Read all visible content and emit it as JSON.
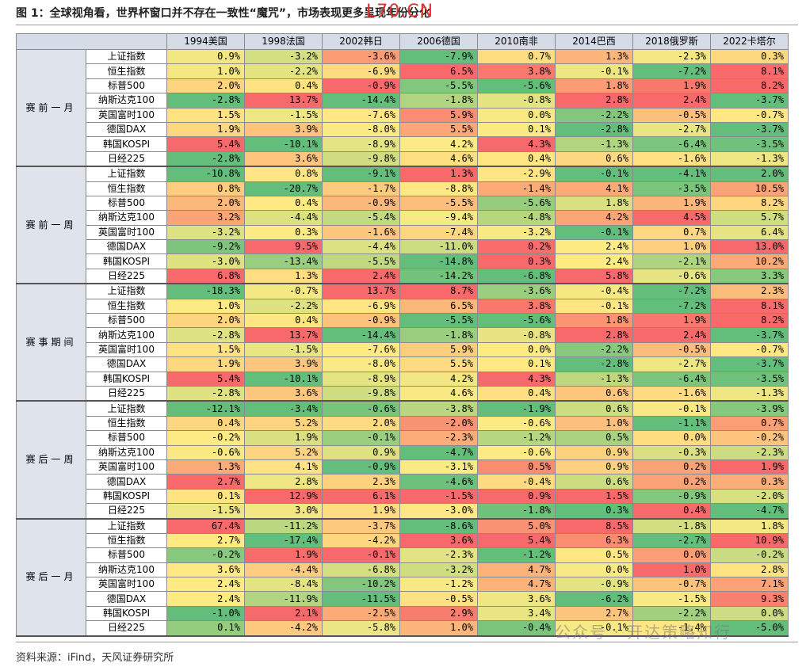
{
  "title": "图 1：全球视角看，世界杯窗口并不存在一致性“魔咒”，市场表现更多呈现年份分化",
  "stamp": "L70.CN",
  "columns": [
    "1994美国",
    "1998法国",
    "2002韩日",
    "2006德国",
    "2010南非",
    "2014巴西",
    "2018俄罗斯",
    "2022卡塔尔"
  ],
  "groups": [
    {
      "label": "赛前一月",
      "rows": [
        {
          "name": "上证指数",
          "values": [
            "0.9%",
            "-3.2%",
            "-3.6%",
            "-7.9%",
            "0.7%",
            "1.3%",
            "-2.3%",
            "0.3%"
          ]
        },
        {
          "name": "恒生指数",
          "values": [
            "1.0%",
            "-2.2%",
            "-6.9%",
            "6.5%",
            "3.8%",
            "-0.1%",
            "-7.2%",
            "8.1%"
          ]
        },
        {
          "name": "标普500",
          "values": [
            "2.0%",
            "0.4%",
            "-0.9%",
            "-5.5%",
            "-5.6%",
            "1.8%",
            "1.9%",
            "8.2%"
          ]
        },
        {
          "name": "纳斯达克100",
          "values": [
            "-2.8%",
            "13.7%",
            "-14.4%",
            "-1.8%",
            "-0.8%",
            "2.8%",
            "2.4%",
            "-3.7%"
          ]
        },
        {
          "name": "英国富时100",
          "values": [
            "1.5%",
            "-1.5%",
            "-7.6%",
            "5.9%",
            "0.0%",
            "-2.2%",
            "-0.5%",
            "-0.7%"
          ]
        },
        {
          "name": "德国DAX",
          "values": [
            "1.9%",
            "3.9%",
            "-8.0%",
            "5.5%",
            "0.1%",
            "-2.8%",
            "-2.7%",
            "-3.7%"
          ]
        },
        {
          "name": "韩国KOSPI",
          "values": [
            "5.4%",
            "-10.1%",
            "-8.9%",
            "4.2%",
            "4.3%",
            "-1.3%",
            "-6.4%",
            "-3.5%"
          ]
        },
        {
          "name": "日经225",
          "values": [
            "-2.8%",
            "3.6%",
            "-9.8%",
            "4.6%",
            "0.4%",
            "0.6%",
            "-1.6%",
            "-1.3%"
          ]
        }
      ]
    },
    {
      "label": "赛前一周",
      "rows": [
        {
          "name": "上证指数",
          "values": [
            "-10.8%",
            "0.8%",
            "-9.1%",
            "1.3%",
            "-2.9%",
            "-0.1%",
            "-4.1%",
            "2.0%"
          ]
        },
        {
          "name": "恒生指数",
          "values": [
            "0.8%",
            "-20.7%",
            "-1.7%",
            "-8.8%",
            "-1.4%",
            "4.1%",
            "-3.5%",
            "10.5%"
          ]
        },
        {
          "name": "标普500",
          "values": [
            "2.0%",
            "0.4%",
            "-0.9%",
            "-5.5%",
            "-5.6%",
            "1.8%",
            "1.9%",
            "8.2%"
          ]
        },
        {
          "name": "纳斯达克100",
          "values": [
            "3.2%",
            "-4.4%",
            "-5.4%",
            "-9.4%",
            "-4.8%",
            "4.2%",
            "4.5%",
            "5.7%"
          ]
        },
        {
          "name": "英国富时100",
          "values": [
            "-3.2%",
            "0.3%",
            "-1.6%",
            "-7.4%",
            "-3.2%",
            "-0.1%",
            "0.7%",
            "6.4%"
          ]
        },
        {
          "name": "德国DAX",
          "values": [
            "-9.2%",
            "9.5%",
            "-4.4%",
            "-11.0%",
            "0.2%",
            "2.4%",
            "1.0%",
            "13.0%"
          ]
        },
        {
          "name": "韩国KOSPI",
          "values": [
            "-3.0%",
            "-13.4%",
            "-5.5%",
            "-14.8%",
            "0.3%",
            "2.4%",
            "-2.1%",
            "10.2%"
          ]
        },
        {
          "name": "日经225",
          "values": [
            "6.8%",
            "1.3%",
            "2.4%",
            "-14.2%",
            "-6.8%",
            "5.8%",
            "-0.6%",
            "3.3%"
          ]
        }
      ]
    },
    {
      "label": "赛事期间",
      "rows": [
        {
          "name": "上证指数",
          "values": [
            "-18.3%",
            "-0.7%",
            "13.7%",
            "8.7%",
            "-3.6%",
            "-0.4%",
            "-7.2%",
            "2.3%"
          ]
        },
        {
          "name": "恒生指数",
          "values": [
            "1.0%",
            "-2.2%",
            "-6.9%",
            "6.5%",
            "3.8%",
            "-0.1%",
            "-7.2%",
            "8.1%"
          ]
        },
        {
          "name": "标普500",
          "values": [
            "2.0%",
            "0.4%",
            "-0.9%",
            "-5.5%",
            "-5.6%",
            "1.8%",
            "1.9%",
            "8.2%"
          ]
        },
        {
          "name": "纳斯达克100",
          "values": [
            "-2.8%",
            "13.7%",
            "-14.4%",
            "-1.8%",
            "-0.8%",
            "2.8%",
            "2.4%",
            "-3.7%"
          ]
        },
        {
          "name": "英国富时100",
          "values": [
            "1.5%",
            "-1.5%",
            "-7.6%",
            "5.9%",
            "0.0%",
            "-2.2%",
            "-0.5%",
            "-0.7%"
          ]
        },
        {
          "name": "德国DAX",
          "values": [
            "1.9%",
            "3.9%",
            "-8.0%",
            "5.5%",
            "0.1%",
            "-2.8%",
            "-2.7%",
            "-3.7%"
          ]
        },
        {
          "name": "韩国KOSPI",
          "values": [
            "5.4%",
            "-10.1%",
            "-8.9%",
            "4.2%",
            "4.3%",
            "-1.3%",
            "-6.4%",
            "-3.5%"
          ]
        },
        {
          "name": "日经225",
          "values": [
            "-2.8%",
            "3.6%",
            "-9.8%",
            "4.6%",
            "0.4%",
            "0.6%",
            "-1.6%",
            "-1.3%"
          ]
        }
      ]
    },
    {
      "label": "赛后一周",
      "rows": [
        {
          "name": "上证指数",
          "values": [
            "-12.1%",
            "-3.4%",
            "-0.6%",
            "-3.8%",
            "-1.9%",
            "0.6%",
            "-0.1%",
            "-3.9%"
          ]
        },
        {
          "name": "恒生指数",
          "values": [
            "0.4%",
            "5.2%",
            "2.0%",
            "-2.0%",
            "-0.6%",
            "1.0%",
            "-1.1%",
            "0.7%"
          ]
        },
        {
          "name": "标普500",
          "values": [
            "-0.2%",
            "1.9%",
            "-0.1%",
            "-2.3%",
            "-1.2%",
            "0.5%",
            "0.0%",
            "-0.2%"
          ]
        },
        {
          "name": "纳斯达克100",
          "values": [
            "-0.6%",
            "5.2%",
            "0.9%",
            "-4.7%",
            "-0.6%",
            "0.9%",
            "-0.3%",
            "-2.3%"
          ]
        },
        {
          "name": "英国富时100",
          "values": [
            "1.3%",
            "4.1%",
            "-0.9%",
            "-3.1%",
            "0.5%",
            "0.9%",
            "0.2%",
            "1.9%"
          ]
        },
        {
          "name": "德国DAX",
          "values": [
            "2.7%",
            "2.8%",
            "2.3%",
            "-4.6%",
            "-0.4%",
            "0.6%",
            "0.2%",
            "0.3%"
          ]
        },
        {
          "name": "韩国KOSPI",
          "values": [
            "0.1%",
            "12.9%",
            "6.1%",
            "-1.5%",
            "0.9%",
            "1.5%",
            "-0.9%",
            "-2.0%"
          ]
        },
        {
          "name": "日经225",
          "values": [
            "-1.5%",
            "3.0%",
            "1.9%",
            "-3.0%",
            "-1.8%",
            "0.3%",
            "0.4%",
            "-4.7%"
          ]
        }
      ]
    },
    {
      "label": "赛后一月",
      "rows": [
        {
          "name": "上证指数",
          "values": [
            "67.4%",
            "-11.2%",
            "-3.7%",
            "-8.6%",
            "5.0%",
            "8.5%",
            "-1.8%",
            "1.8%"
          ]
        },
        {
          "name": "恒生指数",
          "values": [
            "2.7%",
            "-17.4%",
            "-4.2%",
            "3.6%",
            "5.4%",
            "6.3%",
            "-2.7%",
            "10.9%"
          ]
        },
        {
          "name": "标普500",
          "values": [
            "-0.2%",
            "1.9%",
            "-0.1%",
            "-2.3%",
            "-1.2%",
            "0.5%",
            "0.0%",
            "-0.2%"
          ]
        },
        {
          "name": "纳斯达克100",
          "values": [
            "3.6%",
            "-4.4%",
            "-6.8%",
            "-3.2%",
            "4.7%",
            "0.0%",
            "1.0%",
            "2.8%"
          ]
        },
        {
          "name": "英国富时100",
          "values": [
            "2.4%",
            "-8.4%",
            "-10.2%",
            "-1.2%",
            "4.7%",
            "-0.9%",
            "-0.7%",
            "7.1%"
          ]
        },
        {
          "name": "德国DAX",
          "values": [
            "2.4%",
            "-11.9%",
            "-11.5%",
            "-0.5%",
            "3.6%",
            "-6.2%",
            "-1.5%",
            "9.3%"
          ]
        },
        {
          "name": "韩国KOSPI",
          "values": [
            "-1.0%",
            "2.1%",
            "-2.5%",
            "2.9%",
            "3.4%",
            "2.7%",
            "-2.2%",
            "0.0%"
          ]
        },
        {
          "name": "日经225",
          "values": [
            "0.1%",
            "-4.2%",
            "-5.8%",
            "1.0%",
            "-0.4%",
            "-0.1%",
            "-1.4%",
            "-5.0%"
          ]
        }
      ]
    }
  ],
  "source": "资料来源：iFind，天风证券研究所",
  "watermark": "公众号 · 开达策略知行"
}
